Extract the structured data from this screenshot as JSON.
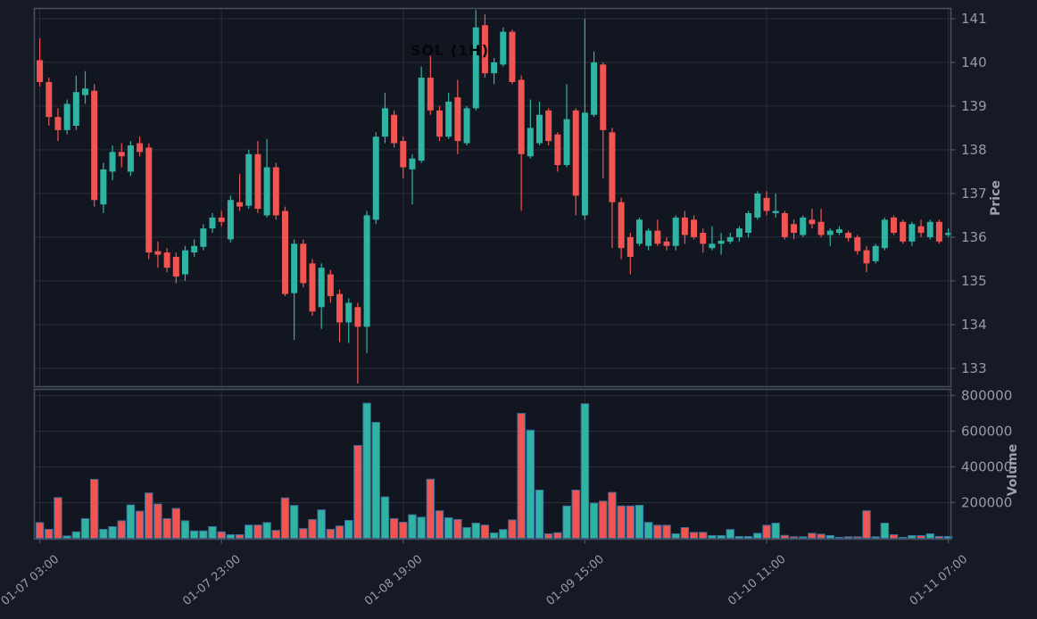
{
  "title": "SOL (1H)",
  "y_axis": {
    "label": "Price",
    "ticks": [
      "133",
      "134",
      "135",
      "136",
      "137",
      "138",
      "139",
      "140",
      "141"
    ]
  },
  "volume_axis": {
    "label": "Volume",
    "ticks": [
      "200000",
      "400000",
      "600000",
      "800000"
    ]
  },
  "x_axis": {
    "ticks": [
      "01-07 03:00",
      "01-07 23:00",
      "01-08 19:00",
      "01-09 15:00",
      "01-10 11:00",
      "01-11 07:00"
    ]
  },
  "colors": {
    "background": "#161A25",
    "plot_background": "#121621",
    "grid": "#2A2F3A",
    "spine": "#454D5D",
    "tick_label": "#959BA7",
    "up": "#2FB4A4",
    "down": "#F05552",
    "volume_edge": "#3D6F9D",
    "title": "#04060a"
  },
  "chart_data": {
    "type": "candlestick",
    "symbol": "SOL",
    "interval": "1H",
    "start_time": "01-07 03:00",
    "step_hours": 1,
    "x_tick_indices": [
      0,
      20,
      40,
      60,
      80,
      100
    ],
    "price_axis_range": [
      132.58,
      141.233
    ],
    "volume_axis_range": [
      0,
      820000
    ],
    "columns": [
      "open",
      "high",
      "low",
      "close",
      "volume"
    ],
    "candles": [
      [
        140.05,
        140.55,
        139.45,
        139.55,
        88000
      ],
      [
        139.55,
        139.65,
        138.55,
        138.75,
        50000
      ],
      [
        138.75,
        138.95,
        138.2,
        138.45,
        228000
      ],
      [
        138.45,
        139.15,
        138.35,
        139.05,
        13000
      ],
      [
        138.55,
        139.7,
        138.45,
        139.32,
        36000
      ],
      [
        139.25,
        139.8,
        139.05,
        139.4,
        110000
      ],
      [
        139.35,
        139.5,
        136.7,
        136.85,
        330000
      ],
      [
        136.75,
        137.7,
        136.55,
        137.55,
        50000
      ],
      [
        137.5,
        138.1,
        137.3,
        137.95,
        65000
      ],
      [
        137.95,
        138.15,
        137.6,
        137.85,
        98000
      ],
      [
        137.5,
        138.2,
        137.4,
        138.1,
        187000
      ],
      [
        138.15,
        138.3,
        137.85,
        137.95,
        152000
      ],
      [
        138.05,
        138.15,
        135.5,
        135.65,
        254000
      ],
      [
        135.68,
        135.9,
        135.3,
        135.6,
        192000
      ],
      [
        135.65,
        135.75,
        135.2,
        135.3,
        110000
      ],
      [
        135.55,
        135.65,
        134.95,
        135.1,
        167000
      ],
      [
        135.15,
        135.8,
        135.0,
        135.7,
        98000
      ],
      [
        135.65,
        135.95,
        135.55,
        135.8,
        41000
      ],
      [
        135.78,
        136.3,
        135.7,
        136.2,
        41000
      ],
      [
        136.2,
        136.55,
        136.1,
        136.45,
        65000
      ],
      [
        136.45,
        136.6,
        136.25,
        136.35,
        36000
      ],
      [
        135.95,
        136.95,
        135.88,
        136.85,
        20000
      ],
      [
        136.8,
        137.45,
        136.6,
        136.7,
        20000
      ],
      [
        136.72,
        138.0,
        136.65,
        137.9,
        74000
      ],
      [
        137.9,
        138.2,
        136.55,
        136.65,
        74000
      ],
      [
        136.5,
        138.25,
        136.45,
        137.6,
        88000
      ],
      [
        137.6,
        137.7,
        136.4,
        136.5,
        44000
      ],
      [
        136.6,
        136.7,
        134.65,
        134.7,
        226000
      ],
      [
        134.72,
        135.95,
        133.65,
        135.85,
        184000
      ],
      [
        135.85,
        135.95,
        134.85,
        134.95,
        54000
      ],
      [
        135.4,
        135.5,
        134.2,
        134.3,
        105000
      ],
      [
        134.4,
        135.4,
        133.9,
        135.3,
        159000
      ],
      [
        135.15,
        135.25,
        134.5,
        134.65,
        50000
      ],
      [
        134.7,
        134.8,
        133.6,
        134.05,
        69000
      ],
      [
        134.05,
        134.6,
        133.58,
        134.5,
        100000
      ],
      [
        134.4,
        134.5,
        132.65,
        133.95,
        520000
      ],
      [
        133.95,
        136.6,
        133.35,
        136.5,
        757000
      ],
      [
        136.4,
        138.4,
        136.3,
        138.3,
        650000
      ],
      [
        138.3,
        139.3,
        138.15,
        138.95,
        232000
      ],
      [
        138.8,
        138.9,
        138.05,
        138.15,
        110000
      ],
      [
        138.2,
        138.3,
        137.35,
        137.6,
        90000
      ],
      [
        137.55,
        137.9,
        136.75,
        137.8,
        132000
      ],
      [
        137.75,
        139.9,
        137.7,
        139.65,
        118000
      ],
      [
        139.65,
        140.15,
        138.8,
        138.9,
        331000
      ],
      [
        138.9,
        139.0,
        138.2,
        138.3,
        154000
      ],
      [
        138.3,
        139.3,
        138.25,
        139.1,
        115000
      ],
      [
        139.2,
        139.6,
        137.9,
        138.2,
        105000
      ],
      [
        138.15,
        139.0,
        138.1,
        138.95,
        60000
      ],
      [
        138.95,
        141.2,
        138.9,
        140.8,
        85000
      ],
      [
        140.85,
        141.1,
        139.65,
        139.75,
        74000
      ],
      [
        139.75,
        140.1,
        139.5,
        140.0,
        30000
      ],
      [
        139.95,
        140.8,
        139.9,
        140.7,
        49000
      ],
      [
        140.7,
        140.75,
        139.5,
        139.55,
        103000
      ],
      [
        139.6,
        139.7,
        136.6,
        137.9,
        700000
      ],
      [
        137.85,
        139.15,
        137.8,
        138.5,
        606000
      ],
      [
        138.15,
        139.1,
        138.1,
        138.8,
        270000
      ],
      [
        138.9,
        138.95,
        138.1,
        138.2,
        25000
      ],
      [
        138.35,
        138.4,
        137.5,
        137.65,
        31000
      ],
      [
        137.65,
        139.5,
        137.6,
        138.7,
        181000
      ],
      [
        138.9,
        138.95,
        136.5,
        136.95,
        270000
      ],
      [
        136.5,
        141.0,
        136.4,
        138.85,
        754000
      ],
      [
        138.8,
        140.25,
        138.75,
        140.0,
        197000
      ],
      [
        139.95,
        140.0,
        137.35,
        138.45,
        208000
      ],
      [
        138.4,
        138.5,
        135.75,
        136.8,
        257000
      ],
      [
        136.8,
        136.9,
        135.5,
        135.75,
        181000
      ],
      [
        136.0,
        136.1,
        135.15,
        135.55,
        181000
      ],
      [
        135.85,
        136.45,
        135.8,
        136.4,
        185000
      ],
      [
        135.8,
        136.2,
        135.7,
        136.15,
        89000
      ],
      [
        136.15,
        136.4,
        135.8,
        135.85,
        73000
      ],
      [
        135.9,
        136.0,
        135.7,
        135.8,
        73000
      ],
      [
        135.8,
        136.5,
        135.7,
        136.45,
        25000
      ],
      [
        136.45,
        136.6,
        135.85,
        136.05,
        60000
      ],
      [
        136.4,
        136.5,
        135.95,
        136.0,
        33000
      ],
      [
        136.1,
        136.2,
        135.65,
        135.85,
        33000
      ],
      [
        135.75,
        136.25,
        135.7,
        135.85,
        15000
      ],
      [
        135.85,
        136.1,
        135.6,
        135.92,
        15000
      ],
      [
        135.9,
        136.1,
        135.85,
        136.0,
        49000
      ],
      [
        136.0,
        136.25,
        135.9,
        136.2,
        10000
      ],
      [
        136.1,
        136.6,
        136.0,
        136.55,
        10000
      ],
      [
        136.45,
        137.05,
        136.4,
        137.0,
        28000
      ],
      [
        136.9,
        137.05,
        136.5,
        136.6,
        73000
      ],
      [
        136.55,
        137.0,
        136.45,
        136.6,
        85000
      ],
      [
        136.55,
        136.6,
        135.95,
        136.0,
        16000
      ],
      [
        136.3,
        136.4,
        135.95,
        136.1,
        8000
      ],
      [
        136.05,
        136.5,
        136.0,
        136.45,
        8000
      ],
      [
        136.4,
        136.65,
        136.2,
        136.3,
        28000
      ],
      [
        136.35,
        136.65,
        136.0,
        136.05,
        23000
      ],
      [
        136.05,
        136.2,
        135.8,
        136.15,
        15000
      ],
      [
        136.1,
        136.25,
        136.05,
        136.18,
        5000
      ],
      [
        136.1,
        136.15,
        135.9,
        135.98,
        8000
      ],
      [
        136.0,
        136.05,
        135.6,
        135.68,
        8000
      ],
      [
        135.7,
        135.8,
        135.2,
        135.4,
        154000
      ],
      [
        135.45,
        135.85,
        135.4,
        135.8,
        8000
      ],
      [
        135.75,
        136.45,
        135.7,
        136.4,
        85000
      ],
      [
        136.45,
        136.5,
        136.05,
        136.1,
        20000
      ],
      [
        136.35,
        136.4,
        135.85,
        135.9,
        5000
      ],
      [
        135.9,
        136.35,
        135.8,
        136.3,
        15000
      ],
      [
        136.25,
        136.4,
        136.0,
        136.1,
        15000
      ],
      [
        136.0,
        136.4,
        135.95,
        136.35,
        25000
      ],
      [
        136.35,
        136.4,
        135.85,
        135.9,
        10000
      ],
      [
        136.05,
        136.2,
        136.0,
        136.1,
        10000
      ]
    ]
  }
}
